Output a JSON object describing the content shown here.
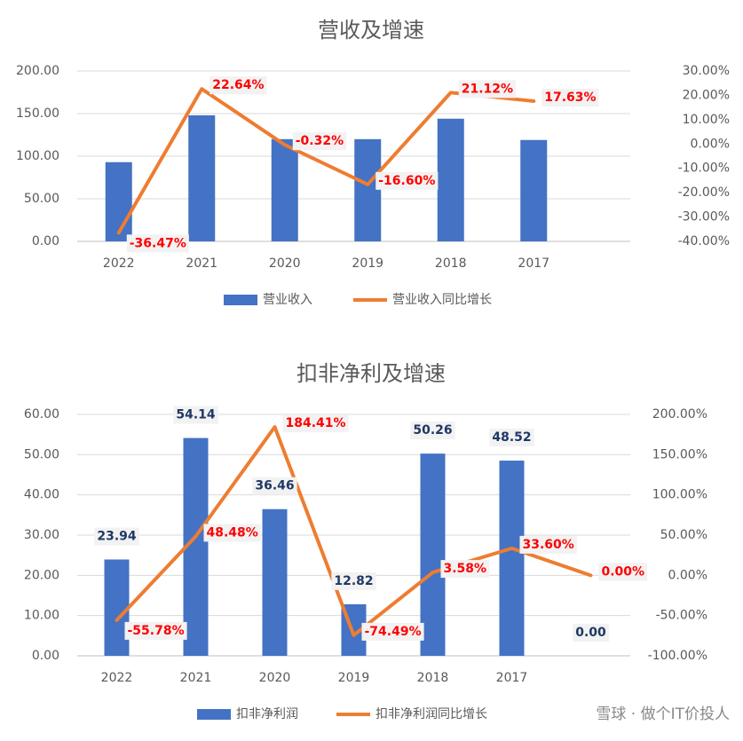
{
  "chart_data": [
    {
      "type": "combo",
      "title": "营收及增速",
      "categories": [
        "2022",
        "2021",
        "2020",
        "2019",
        "2018",
        "2017"
      ],
      "series": [
        {
          "name": "营业收入",
          "type": "bar",
          "color": "#4472c4",
          "values": [
            93,
            148,
            120,
            120,
            144,
            119
          ]
        },
        {
          "name": "营业收入同比增长",
          "type": "line",
          "axis": "y2",
          "color": "#ed7d31",
          "values": [
            -36.47,
            22.64,
            -0.32,
            -16.6,
            21.12,
            17.63
          ],
          "value_labels": [
            "-36.47%",
            "22.64%",
            "-0.32%",
            "-16.60%",
            "21.12%",
            "17.63%"
          ]
        }
      ],
      "ylim": [
        0,
        200
      ],
      "yticks": [
        {
          "value": 0,
          "label": "0.00"
        },
        {
          "value": 50,
          "label": "50.00"
        },
        {
          "value": 100,
          "label": "100.00"
        },
        {
          "value": 150,
          "label": "150.00"
        },
        {
          "value": 200,
          "label": "200.00"
        }
      ],
      "y2lim": [
        -40,
        30
      ],
      "y2ticks": [
        {
          "value": -40,
          "label": "-40.00%"
        },
        {
          "value": -30,
          "label": "-30.00%"
        },
        {
          "value": -20,
          "label": "-20.00%"
        },
        {
          "value": -10,
          "label": "-10.00%"
        },
        {
          "value": 0,
          "label": "0.00%"
        },
        {
          "value": 10,
          "label": "10.00%"
        },
        {
          "value": 20,
          "label": "20.00%"
        },
        {
          "value": 30,
          "label": "30.00%"
        }
      ],
      "grid": true,
      "legend": "bottom"
    },
    {
      "type": "combo",
      "title": "扣非净利及增速",
      "categories": [
        "2022",
        "2021",
        "2020",
        "2019",
        "2018",
        "2017",
        null
      ],
      "series": [
        {
          "name": "扣非净利润",
          "type": "bar",
          "color": "#4472c4",
          "values": [
            23.94,
            54.14,
            36.46,
            12.82,
            50.26,
            48.52,
            0
          ],
          "value_labels": [
            "23.94",
            "54.14",
            "36.46",
            "12.82",
            "50.26",
            "48.52",
            "0.00"
          ]
        },
        {
          "name": "扣非净利润同比增长",
          "type": "line",
          "axis": "y2",
          "color": "#ed7d31",
          "values": [
            -55.78,
            48.48,
            184.41,
            -74.49,
            3.58,
            33.6,
            0
          ],
          "value_labels": [
            "-55.78%",
            "48.48%",
            "184.41%",
            "-74.49%",
            "3.58%",
            "33.60%",
            "0.00%"
          ]
        }
      ],
      "ylim": [
        0,
        60
      ],
      "yticks": [
        {
          "value": 0,
          "label": "0.00"
        },
        {
          "value": 10,
          "label": "10.00"
        },
        {
          "value": 20,
          "label": "20.00"
        },
        {
          "value": 30,
          "label": "30.00"
        },
        {
          "value": 40,
          "label": "40.00"
        },
        {
          "value": 50,
          "label": "50.00"
        },
        {
          "value": 60,
          "label": "60.00"
        }
      ],
      "y2lim": [
        -100,
        200
      ],
      "y2ticks": [
        {
          "value": -100,
          "label": "-100.00%"
        },
        {
          "value": -50,
          "label": "-50.00%"
        },
        {
          "value": 0,
          "label": "0.00%"
        },
        {
          "value": 50,
          "label": "50.00%"
        },
        {
          "value": 100,
          "label": "100.00%"
        },
        {
          "value": 150,
          "label": "150.00%"
        },
        {
          "value": 200,
          "label": "200.00%"
        }
      ],
      "grid": true,
      "legend": "bottom"
    }
  ],
  "watermark": "雪球 · 做个IT价投人"
}
